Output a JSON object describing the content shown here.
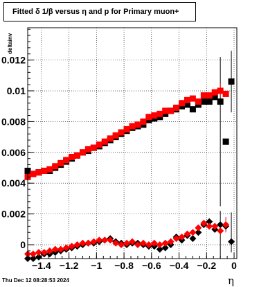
{
  "chart_data": {
    "type": "scatter",
    "title": "Fitted δ 1/β versus η and p for Primary muon+",
    "xlabel": "η",
    "ylabel": "deltainv",
    "xlim": [
      -1.5,
      0.02
    ],
    "ylim": [
      -0.0009,
      0.0141
    ],
    "grid": true,
    "x_ticks": [
      -1.4,
      -1.2,
      -1.0,
      -0.8,
      -0.6,
      -0.4,
      -0.2,
      0
    ],
    "x_tick_labels": [
      "−1.4",
      "−1.2",
      "−1",
      "−0.8",
      "−0.6",
      "−0.4",
      "−0.2",
      "0"
    ],
    "y_ticks": [
      0,
      0.002,
      0.004,
      0.006,
      0.008,
      0.01,
      0.012
    ],
    "y_tick_labels": [
      "0",
      "0.002",
      "0.004",
      "0.006",
      "0.008",
      "0.01",
      "0.012"
    ],
    "x": [
      -1.5,
      -1.46,
      -1.42,
      -1.38,
      -1.34,
      -1.3,
      -1.26,
      -1.22,
      -1.18,
      -1.14,
      -1.1,
      -1.06,
      -1.02,
      -0.98,
      -0.94,
      -0.9,
      -0.86,
      -0.82,
      -0.78,
      -0.74,
      -0.7,
      -0.66,
      -0.62,
      -0.58,
      -0.54,
      -0.5,
      -0.46,
      -0.42,
      -0.38,
      -0.34,
      -0.3,
      -0.26,
      -0.22,
      -0.18,
      -0.14,
      -0.1,
      -0.06,
      -0.02
    ],
    "series": [
      {
        "color": "#000000",
        "marker": "square",
        "values": [
          0.0048,
          0.0046,
          0.0047,
          0.0048,
          0.0048,
          0.005,
          0.0052,
          0.0054,
          0.0056,
          0.0058,
          0.006,
          0.0061,
          0.0063,
          0.0064,
          0.0066,
          0.0068,
          0.007,
          0.0072,
          0.0074,
          0.0076,
          0.0077,
          0.0078,
          0.0081,
          0.0082,
          0.0083,
          0.0085,
          0.0087,
          0.0088,
          0.009,
          0.0091,
          0.0088,
          0.0091,
          0.0093,
          0.0093,
          0.0096,
          0.0093,
          0.0067,
          0.0106
        ]
      },
      {
        "color": "#ff0000",
        "marker": "square",
        "values": [
          0.0044,
          0.0046,
          0.0047,
          0.0048,
          0.0049,
          0.0051,
          0.0053,
          0.0055,
          0.0057,
          0.0058,
          0.006,
          0.0062,
          0.0063,
          0.0065,
          0.0067,
          0.0069,
          0.0071,
          0.0073,
          0.0075,
          0.0077,
          0.0078,
          0.008,
          0.0083,
          0.0084,
          0.0085,
          0.0087,
          0.0087,
          0.0089,
          0.0092,
          0.0094,
          0.0095,
          0.0093,
          0.0097,
          0.0097,
          0.0099,
          0.01,
          0.0098,
          null
        ]
      },
      {
        "color": "#000000",
        "marker": "diamond",
        "values": [
          -0.0009,
          -0.0009,
          -0.0008,
          -0.0006,
          -0.0006,
          -0.0005,
          -0.0004,
          -0.0003,
          -0.0002,
          -0.0001,
          0.0,
          0.0001,
          0.0001,
          0.0002,
          0.0003,
          0.0004,
          0.0002,
          0.0001,
          0.0,
          0.0001,
          0.0001,
          0.0,
          -0.0001,
          -0.0001,
          -0.0003,
          -0.0002,
          0.0,
          0.0005,
          0.0003,
          0.0006,
          0.0004,
          0.0008,
          0.0013,
          0.0015,
          0.001,
          0.0013,
          0.0012,
          0.0002
        ]
      },
      {
        "color": "#ff0000",
        "marker": "diamond",
        "values": [
          -0.0006,
          -0.0006,
          -0.0005,
          -0.0005,
          -0.0004,
          -0.0003,
          -0.0003,
          -0.0002,
          -0.0001,
          0.0,
          0.0001,
          0.0001,
          0.0002,
          0.0003,
          0.0003,
          0.0003,
          0.0001,
          0.0,
          0.0001,
          0.0002,
          0.0,
          0.0001,
          0.0,
          0.0001,
          0.0,
          0.0001,
          0.0002,
          0.0004,
          0.0005,
          0.0007,
          0.0008,
          0.0011,
          0.0014,
          0.0012,
          0.0012,
          0.0009,
          0.0013,
          null
        ]
      }
    ],
    "error_bars": [
      {
        "series": 0,
        "index": 35,
        "low": 0.0025,
        "high": 0.0122
      },
      {
        "series": 0,
        "index": 37,
        "low": 0.0086,
        "high": 0.0126
      },
      {
        "series": 2,
        "index": 35,
        "low": -0.0009,
        "high": 0.0022
      },
      {
        "series": 2,
        "index": 37,
        "low": -0.0005,
        "high": 0.0021
      },
      {
        "series": 1,
        "index": 35,
        "low": 0.0096,
        "high": 0.0105
      },
      {
        "series": 3,
        "index": 36,
        "low": 0.0008,
        "high": 0.0018
      }
    ]
  },
  "footer": {
    "date": "Thu Dec 12 08:28:53 2024"
  }
}
